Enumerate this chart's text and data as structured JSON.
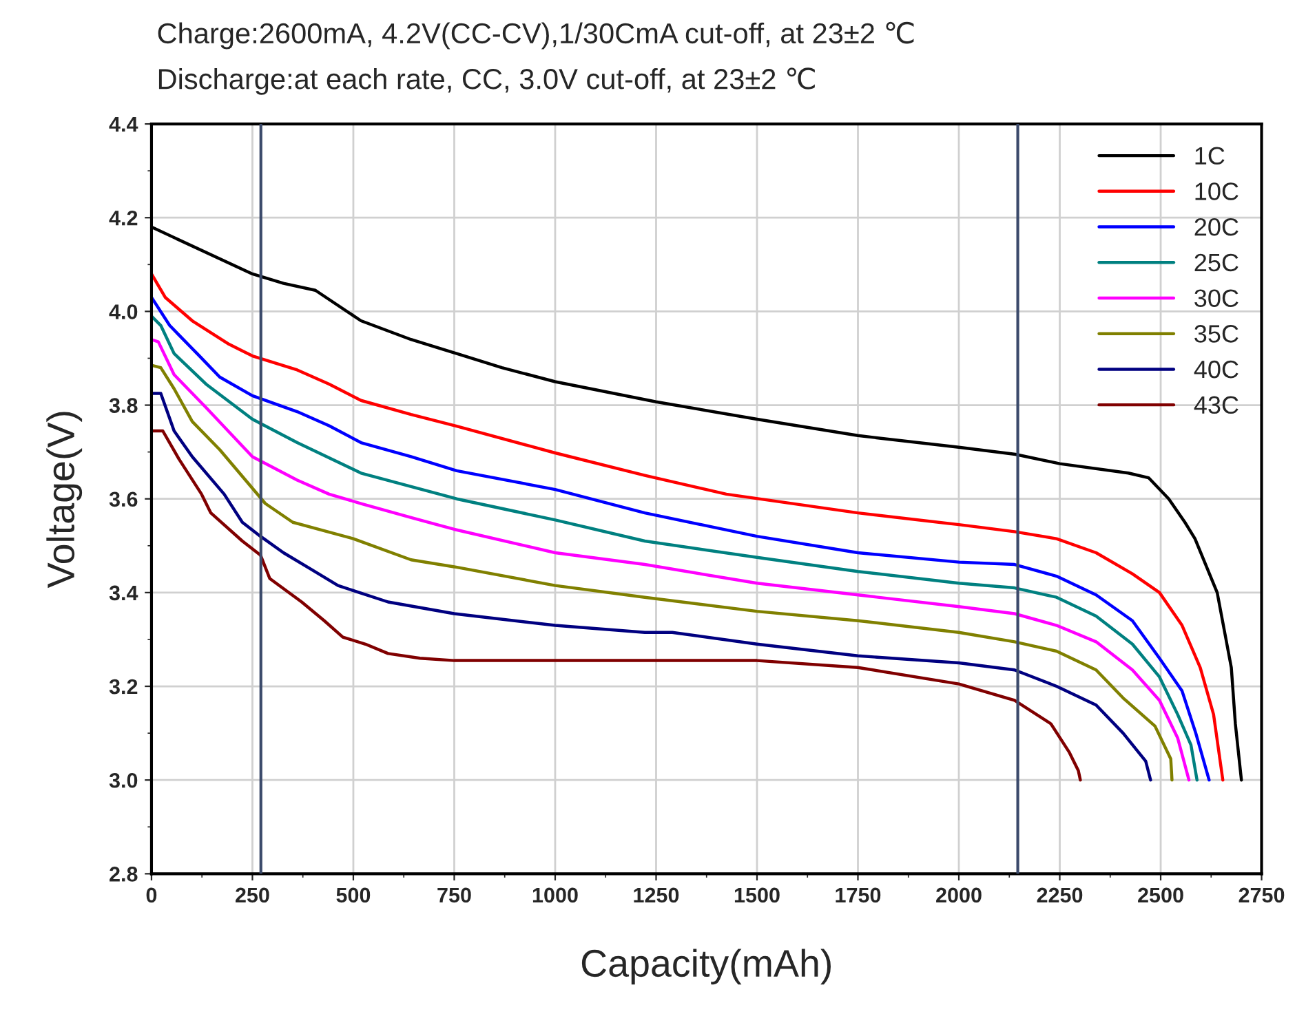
{
  "chart_data": {
    "type": "line",
    "title": "Charge:2600mA, 4.2V(CC-CV),1/30CmA cut-off, at 23±2 ℃",
    "subtitle": "Discharge:at each rate, CC, 3.0V cut-off, at 23±2 ℃",
    "xlabel": "Capacity(mAh)",
    "ylabel": "Voltage(V)",
    "xlim": [
      0,
      2750
    ],
    "xticks": [
      0,
      250,
      500,
      750,
      1000,
      1250,
      1500,
      1750,
      2000,
      2250,
      2500,
      2750
    ],
    "ylim": [
      2.8,
      4.4
    ],
    "yticks": [
      {
        "value": 2.8,
        "label": "2.8"
      },
      {
        "value": 3.0,
        "label": "3.0"
      },
      {
        "value": 3.2,
        "label": "3.2"
      },
      {
        "value": 3.4,
        "label": "3.4"
      },
      {
        "value": 3.6,
        "label": "3.6"
      },
      {
        "value": 3.8,
        "label": "3.8"
      },
      {
        "value": 4.0,
        "label": "4.0"
      },
      {
        "value": 4.2,
        "label": "4.2"
      },
      {
        "value": 4.4,
        "label": "4.4"
      }
    ],
    "grid": true,
    "legend": "top right",
    "marker": "none",
    "line_style": "solid",
    "ref_lines": [
      {
        "axis": "x",
        "value": 271,
        "color": "#3b4a6b"
      },
      {
        "axis": "x",
        "value": 2146,
        "color": "#3b4a6b"
      }
    ],
    "series": [
      {
        "name": "1C",
        "color": "#000000",
        "x": [
          0,
          250,
          327,
          406,
          519,
          643,
          756,
          868,
          1000,
          1250,
          1500,
          1750,
          2000,
          2140,
          2250,
          2420,
          2470,
          2520,
          2560,
          2585,
          2640,
          2675,
          2685,
          2700
        ],
        "values": [
          4.18,
          4.08,
          4.06,
          4.045,
          3.98,
          3.94,
          3.91,
          3.88,
          3.85,
          3.807,
          3.77,
          3.735,
          3.71,
          3.695,
          3.675,
          3.655,
          3.645,
          3.6,
          3.55,
          3.515,
          3.4,
          3.24,
          3.12,
          3.0
        ]
      },
      {
        "name": "10C",
        "color": "#ff0000",
        "x": [
          0,
          34,
          101,
          192,
          250,
          361,
          440,
          519,
          643,
          756,
          1000,
          1222,
          1424,
          1750,
          2000,
          2138,
          2242,
          2340,
          2430,
          2497,
          2553,
          2598,
          2631,
          2654
        ],
        "values": [
          4.08,
          4.03,
          3.98,
          3.93,
          3.905,
          3.875,
          3.845,
          3.81,
          3.78,
          3.755,
          3.698,
          3.65,
          3.61,
          3.57,
          3.545,
          3.53,
          3.515,
          3.485,
          3.44,
          3.4,
          3.33,
          3.24,
          3.14,
          3.0
        ]
      },
      {
        "name": "20C",
        "color": "#0000ff",
        "x": [
          0,
          45,
          113,
          169,
          250,
          361,
          440,
          519,
          643,
          756,
          1000,
          1222,
          1500,
          1750,
          2000,
          2138,
          2242,
          2340,
          2430,
          2497,
          2553,
          2587,
          2620
        ],
        "values": [
          4.03,
          3.97,
          3.91,
          3.86,
          3.82,
          3.786,
          3.756,
          3.72,
          3.69,
          3.66,
          3.62,
          3.57,
          3.52,
          3.485,
          3.465,
          3.46,
          3.435,
          3.395,
          3.34,
          3.26,
          3.19,
          3.1,
          3.0
        ]
      },
      {
        "name": "25C",
        "color": "#008080",
        "x": [
          0,
          23,
          56,
          135,
          250,
          361,
          519,
          756,
          1000,
          1222,
          1500,
          1750,
          2000,
          2138,
          2242,
          2340,
          2430,
          2497,
          2542,
          2575,
          2590
        ],
        "values": [
          3.99,
          3.97,
          3.91,
          3.845,
          3.77,
          3.72,
          3.655,
          3.6,
          3.555,
          3.51,
          3.475,
          3.445,
          3.42,
          3.41,
          3.39,
          3.35,
          3.29,
          3.22,
          3.14,
          3.075,
          3.0
        ]
      },
      {
        "name": "30C",
        "color": "#ff00ff",
        "x": [
          0,
          17,
          56,
          135,
          250,
          361,
          440,
          519,
          643,
          750,
          1000,
          1222,
          1500,
          1750,
          2000,
          2138,
          2242,
          2340,
          2430,
          2497,
          2542,
          2570
        ],
        "values": [
          3.94,
          3.935,
          3.865,
          3.795,
          3.69,
          3.64,
          3.61,
          3.59,
          3.56,
          3.535,
          3.485,
          3.46,
          3.42,
          3.395,
          3.37,
          3.355,
          3.33,
          3.295,
          3.235,
          3.17,
          3.09,
          3.0
        ]
      },
      {
        "name": "35C",
        "color": "#808000",
        "x": [
          0,
          23,
          56,
          101,
          169,
          282,
          350,
          500,
          643,
          750,
          1000,
          1222,
          1500,
          1750,
          2000,
          2138,
          2242,
          2340,
          2407,
          2486,
          2525,
          2528
        ],
        "values": [
          3.885,
          3.88,
          3.835,
          3.765,
          3.705,
          3.59,
          3.55,
          3.515,
          3.47,
          3.455,
          3.415,
          3.39,
          3.36,
          3.34,
          3.315,
          3.295,
          3.275,
          3.235,
          3.175,
          3.115,
          3.045,
          3.0
        ]
      },
      {
        "name": "40C",
        "color": "#000080",
        "x": [
          0,
          23,
          56,
          101,
          180,
          225,
          270,
          327,
          395,
          462,
          586,
          750,
          1000,
          1222,
          1290,
          1500,
          1750,
          2000,
          2138,
          2242,
          2340,
          2407,
          2463,
          2475
        ],
        "values": [
          3.825,
          3.825,
          3.745,
          3.69,
          3.61,
          3.55,
          3.52,
          3.485,
          3.45,
          3.415,
          3.38,
          3.355,
          3.33,
          3.315,
          3.315,
          3.29,
          3.265,
          3.25,
          3.235,
          3.2,
          3.16,
          3.1,
          3.04,
          3.0
        ]
      },
      {
        "name": "43C",
        "color": "#800000",
        "x": [
          0,
          28,
          68,
          124,
          147,
          225,
          270,
          293,
          372,
          428,
          474,
          530,
          586,
          665,
          750,
          1250,
          1500,
          1750,
          2000,
          2138,
          2228,
          2273,
          2296,
          2301
        ],
        "values": [
          3.745,
          3.745,
          3.685,
          3.61,
          3.57,
          3.51,
          3.48,
          3.43,
          3.38,
          3.34,
          3.305,
          3.29,
          3.27,
          3.26,
          3.255,
          3.255,
          3.255,
          3.24,
          3.205,
          3.17,
          3.12,
          3.06,
          3.02,
          3.0
        ]
      }
    ]
  }
}
